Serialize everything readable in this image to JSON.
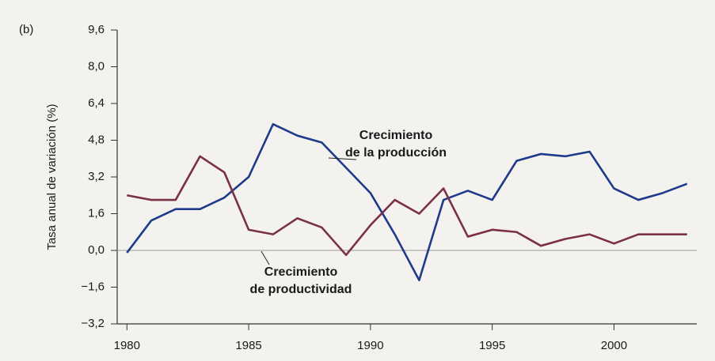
{
  "chart_data": {
    "type": "line",
    "panel_label": "(b)",
    "ylabel": "Tasa anual de variación (%)",
    "x": [
      1980,
      1981,
      1982,
      1983,
      1984,
      1985,
      1986,
      1987,
      1988,
      1989,
      1990,
      1991,
      1992,
      1993,
      1994,
      1995,
      1996,
      1997,
      1998,
      1999,
      2000,
      2001,
      2002,
      2003
    ],
    "series": [
      {
        "name": "Crecimiento de la producción",
        "color": "#1e3a8a",
        "values": [
          -0.1,
          1.3,
          1.8,
          1.8,
          2.3,
          3.2,
          5.5,
          5.0,
          4.7,
          3.6,
          2.5,
          0.7,
          -1.3,
          2.2,
          2.6,
          2.2,
          3.9,
          4.2,
          4.1,
          4.3,
          2.7,
          2.2,
          2.5,
          2.9
        ]
      },
      {
        "name": "Crecimiento de productividad",
        "color": "#7a3048",
        "values": [
          2.4,
          2.2,
          2.2,
          4.1,
          3.4,
          0.9,
          0.7,
          1.4,
          1.0,
          -0.2,
          1.1,
          2.2,
          1.6,
          2.7,
          0.6,
          0.9,
          0.8,
          0.2,
          0.5,
          0.7,
          0.3,
          0.7,
          0.7,
          0.7
        ]
      }
    ],
    "xlim": [
      1979.6,
      2003.4
    ],
    "xticks": [
      1980,
      1985,
      1990,
      1995,
      2000
    ],
    "ylim": [
      -3.2,
      9.6
    ],
    "yticks": [
      {
        "value": -3.2,
        "label": "−3,2"
      },
      {
        "value": -1.6,
        "label": "−1,6"
      },
      {
        "value": 0,
        "label": "0,0"
      },
      {
        "value": 1.6,
        "label": "1,6"
      },
      {
        "value": 3.2,
        "label": "3,2"
      },
      {
        "value": 4.8,
        "label": "4,8"
      },
      {
        "value": 6.4,
        "label": "6,4"
      },
      {
        "value": 8.0,
        "label": "8,0"
      },
      {
        "value": 9.6,
        "label": "9,6"
      }
    ]
  }
}
